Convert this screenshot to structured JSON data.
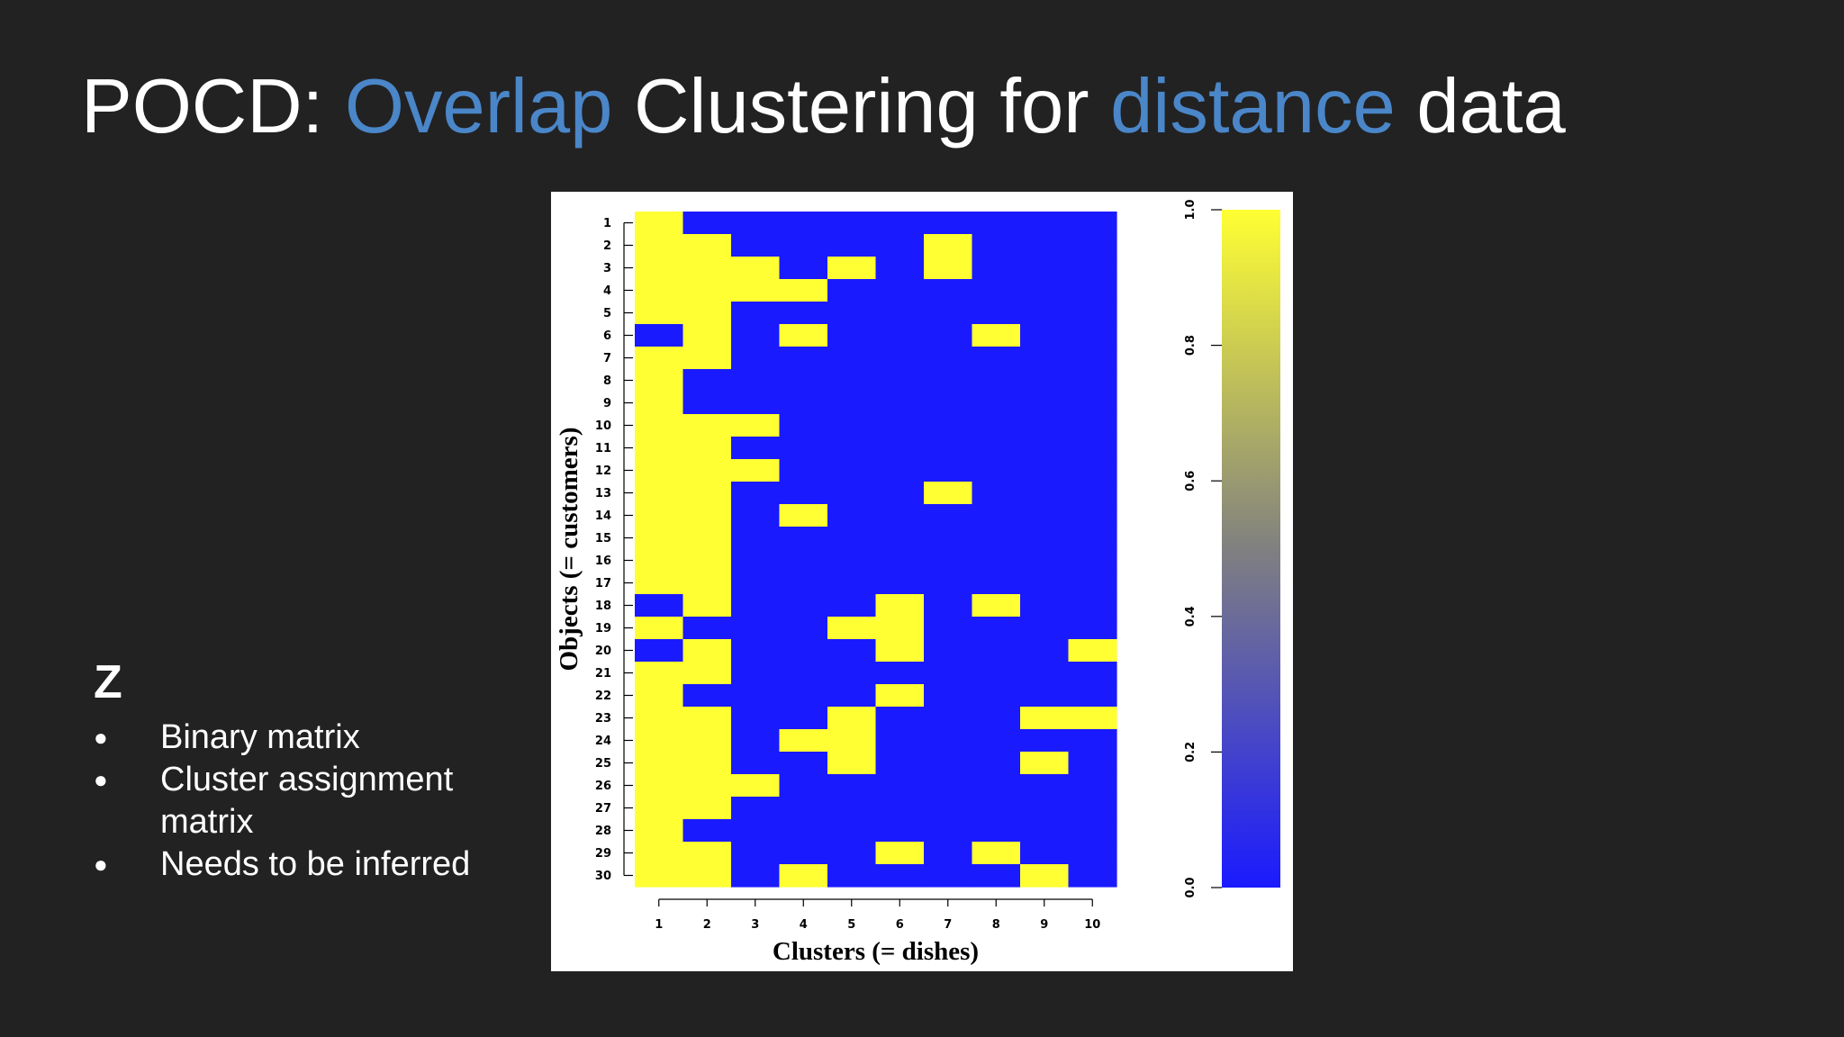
{
  "slide": {
    "title_parts": [
      {
        "text": "POCD: ",
        "accent": false
      },
      {
        "text": "Overlap",
        "accent": true
      },
      {
        "text": " Clustering for ",
        "accent": false
      },
      {
        "text": "distance",
        "accent": true
      },
      {
        "text": " data",
        "accent": false
      }
    ],
    "accent_color": "#4a86c8",
    "z_label": "Z",
    "bullets": [
      "Binary matrix",
      "Cluster assignment matrix",
      "Needs to be inferred"
    ]
  },
  "chart_data": {
    "type": "heatmap",
    "xlabel": "Clusters (= dishes)",
    "ylabel": "Objects (= customers)",
    "x_categories": [
      "1",
      "2",
      "3",
      "4",
      "5",
      "6",
      "7",
      "8",
      "9",
      "10"
    ],
    "y_categories": [
      "1",
      "2",
      "3",
      "4",
      "5",
      "6",
      "7",
      "8",
      "9",
      "10",
      "11",
      "12",
      "13",
      "14",
      "15",
      "16",
      "17",
      "18",
      "19",
      "20",
      "21",
      "22",
      "23",
      "24",
      "25",
      "26",
      "27",
      "28",
      "29",
      "30"
    ],
    "matrix": [
      [
        1,
        0,
        0,
        0,
        0,
        0,
        0,
        0,
        0,
        0
      ],
      [
        1,
        1,
        0,
        0,
        0,
        0,
        1,
        0,
        0,
        0
      ],
      [
        1,
        1,
        1,
        0,
        1,
        0,
        1,
        0,
        0,
        0
      ],
      [
        1,
        1,
        1,
        1,
        0,
        0,
        0,
        0,
        0,
        0
      ],
      [
        1,
        1,
        0,
        0,
        0,
        0,
        0,
        0,
        0,
        0
      ],
      [
        0,
        1,
        0,
        1,
        0,
        0,
        0,
        1,
        0,
        0
      ],
      [
        1,
        1,
        0,
        0,
        0,
        0,
        0,
        0,
        0,
        0
      ],
      [
        1,
        0,
        0,
        0,
        0,
        0,
        0,
        0,
        0,
        0
      ],
      [
        1,
        0,
        0,
        0,
        0,
        0,
        0,
        0,
        0,
        0
      ],
      [
        1,
        1,
        1,
        0,
        0,
        0,
        0,
        0,
        0,
        0
      ],
      [
        1,
        1,
        0,
        0,
        0,
        0,
        0,
        0,
        0,
        0
      ],
      [
        1,
        1,
        1,
        0,
        0,
        0,
        0,
        0,
        0,
        0
      ],
      [
        1,
        1,
        0,
        0,
        0,
        0,
        1,
        0,
        0,
        0
      ],
      [
        1,
        1,
        0,
        1,
        0,
        0,
        0,
        0,
        0,
        0
      ],
      [
        1,
        1,
        0,
        0,
        0,
        0,
        0,
        0,
        0,
        0
      ],
      [
        1,
        1,
        0,
        0,
        0,
        0,
        0,
        0,
        0,
        0
      ],
      [
        1,
        1,
        0,
        0,
        0,
        0,
        0,
        0,
        0,
        0
      ],
      [
        0,
        1,
        0,
        0,
        0,
        1,
        0,
        1,
        0,
        0
      ],
      [
        1,
        0,
        0,
        0,
        1,
        1,
        0,
        0,
        0,
        0
      ],
      [
        0,
        1,
        0,
        0,
        0,
        1,
        0,
        0,
        0,
        1
      ],
      [
        1,
        1,
        0,
        0,
        0,
        0,
        0,
        0,
        0,
        0
      ],
      [
        1,
        0,
        0,
        0,
        0,
        1,
        0,
        0,
        0,
        0
      ],
      [
        1,
        1,
        0,
        0,
        1,
        0,
        0,
        0,
        1,
        1
      ],
      [
        1,
        1,
        0,
        1,
        1,
        0,
        0,
        0,
        0,
        0
      ],
      [
        1,
        1,
        0,
        0,
        1,
        0,
        0,
        0,
        1,
        0
      ],
      [
        1,
        1,
        1,
        0,
        0,
        0,
        0,
        0,
        0,
        0
      ],
      [
        1,
        1,
        0,
        0,
        0,
        0,
        0,
        0,
        0,
        0
      ],
      [
        1,
        0,
        0,
        0,
        0,
        0,
        0,
        0,
        0,
        0
      ],
      [
        1,
        1,
        0,
        0,
        0,
        1,
        0,
        1,
        0,
        0
      ],
      [
        1,
        1,
        0,
        1,
        0,
        0,
        0,
        0,
        1,
        0
      ]
    ],
    "colorbar": {
      "min": 0.0,
      "max": 1.0,
      "ticks": [
        "0.0",
        "0.2",
        "0.4",
        "0.6",
        "0.8",
        "1.0"
      ]
    },
    "colors": {
      "low": "#1a1aff",
      "mid": "#808080",
      "high": "#ffff33"
    },
    "grid": false,
    "legend": "colorbar-right"
  }
}
